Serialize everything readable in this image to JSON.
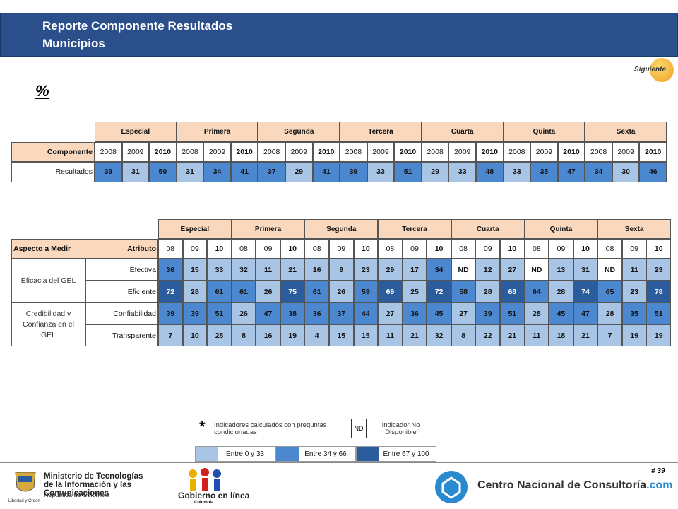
{
  "header": {
    "title": "Reporte Componente Resultados",
    "subtitle": "Municipios",
    "next_button": "Siguiente",
    "unit": "%"
  },
  "table1": {
    "groups": [
      "Especial",
      "Primera",
      "Segunda",
      "Tercera",
      "Cuarta",
      "Quinta",
      "Sexta"
    ],
    "row_header": "Componente",
    "years": [
      "2008",
      "2009",
      "2010"
    ],
    "row_label": "Resultados",
    "values": [
      39,
      31,
      50,
      31,
      34,
      41,
      37,
      29,
      41,
      39,
      33,
      51,
      29,
      33,
      48,
      33,
      35,
      47,
      34,
      30,
      46
    ]
  },
  "table2": {
    "groups": [
      "Especial",
      "Primera",
      "Segunda",
      "Tercera",
      "Cuarta",
      "Quinta",
      "Sexta"
    ],
    "aspect_header": "Aspecto a Medir",
    "attribute_header": "Atributo",
    "years": [
      "08",
      "09",
      "10"
    ],
    "aspects": [
      {
        "label": "Eficacia del GEL",
        "rows": [
          {
            "attribute": "Efectiva",
            "values": [
              36,
              15,
              33,
              32,
              11,
              21,
              16,
              9,
              23,
              29,
              17,
              34,
              "ND",
              12,
              27,
              "ND",
              13,
              31,
              "ND",
              11,
              29
            ]
          },
          {
            "attribute": "Eficiente",
            "values": [
              72,
              28,
              61,
              61,
              26,
              75,
              61,
              26,
              59,
              69,
              25,
              72,
              58,
              28,
              68,
              64,
              28,
              74,
              65,
              23,
              78
            ]
          }
        ]
      },
      {
        "label": "Credibilidad y Confianza en el GEL",
        "rows": [
          {
            "attribute": "Confiabilidad",
            "values": [
              39,
              39,
              51,
              26,
              47,
              38,
              36,
              37,
              44,
              27,
              36,
              45,
              27,
              39,
              51,
              28,
              45,
              47,
              28,
              35,
              51
            ]
          },
          {
            "attribute": "Transparente",
            "values": [
              7,
              10,
              28,
              8,
              16,
              19,
              4,
              15,
              15,
              11,
              21,
              32,
              8,
              22,
              21,
              11,
              18,
              21,
              7,
              19,
              19
            ]
          }
        ]
      }
    ]
  },
  "legend": {
    "conditional_mark": "*",
    "conditional_text": "Indicadores calculados con preguntas condicionadas",
    "nd_box": "ND",
    "nd_text": "Indicador No Disponible",
    "scale": [
      {
        "label": "Entre 0 y 33",
        "min": 0,
        "max": 33,
        "color": "#a9c5e6"
      },
      {
        "label": "Entre 34 y 66",
        "min": 34,
        "max": 66,
        "color": "#4c88d0"
      },
      {
        "label": "Entre 67 y 100",
        "min": 67,
        "max": 100,
        "color": "#2b5c9e"
      }
    ]
  },
  "footer": {
    "page": "# 39",
    "ministry": "Ministerio de Tecnologías de la Información y las Comunicaciones",
    "republic": "República de Colombia",
    "motto": "Libertad y Orden",
    "gel": "Gobierno en línea",
    "gel_country": "Colombia",
    "cnc": "Centro Nacional de Consultoría",
    "cnc_domain": ".com"
  }
}
